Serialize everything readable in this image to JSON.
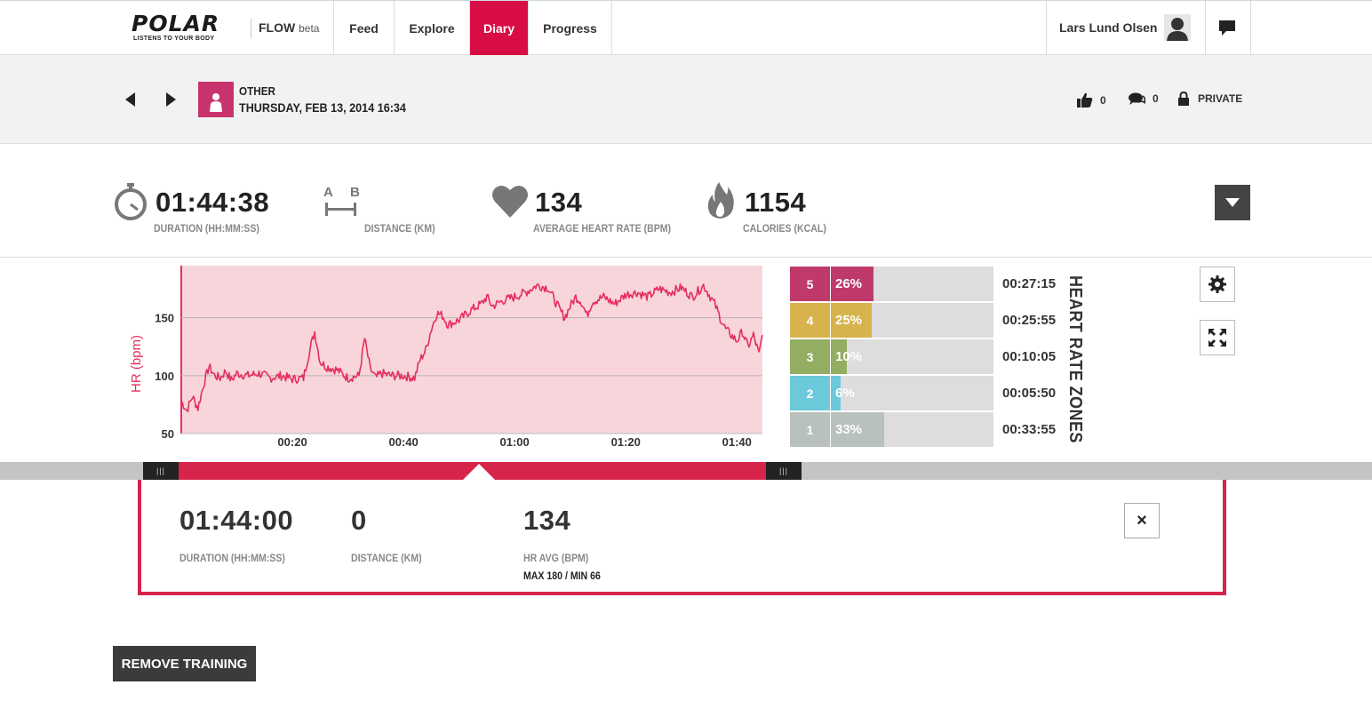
{
  "brand": {
    "name": "POLAR",
    "tagline": "LISTENS TO YOUR BODY",
    "app": "FLOW",
    "app_suffix": "beta"
  },
  "nav": {
    "tabs": [
      {
        "label": "Feed"
      },
      {
        "label": "Explore"
      },
      {
        "label": "Diary",
        "active": true
      },
      {
        "label": "Progress"
      }
    ]
  },
  "user": {
    "name": "Lars Lund Olsen"
  },
  "training": {
    "sport": "OTHER",
    "date": "THURSDAY, FEB 13, 2014 16:34",
    "likes": "0",
    "comments": "0",
    "privacy": "PRIVATE"
  },
  "summary": {
    "duration": {
      "value": "01:44:38",
      "label": "DURATION (HH:MM:SS)"
    },
    "distance": {
      "value": "",
      "label": "DISTANCE (KM)",
      "icon_a": "A",
      "icon_b": "B"
    },
    "heart_rate": {
      "value": "134",
      "label": "AVERAGE HEART RATE (BPM)"
    },
    "calories": {
      "value": "1154",
      "label": "CALORIES (KCAL)"
    }
  },
  "chart_data": {
    "type": "line",
    "ylabel": "HR (bpm)",
    "xlabel": "",
    "ylim": [
      50,
      195
    ],
    "yticks": [
      "150",
      "100",
      "50"
    ],
    "xticks": [
      "00:20",
      "00:40",
      "01:00",
      "01:20",
      "01:40"
    ],
    "xlim_minutes": [
      0,
      104.6
    ],
    "series": [
      {
        "x_minutes": [
          0,
          1,
          2,
          3,
          4,
          5,
          6,
          7,
          8,
          9,
          10,
          12,
          14,
          16,
          18,
          20,
          22,
          23,
          24,
          25,
          26,
          28,
          30,
          32,
          33,
          34,
          35,
          36,
          38,
          40,
          42,
          43,
          44,
          45,
          46,
          47,
          48,
          50,
          52,
          54,
          55,
          56,
          58,
          60,
          62,
          64,
          66,
          68,
          69,
          70,
          71,
          72,
          73,
          74,
          76,
          78,
          80,
          82,
          84,
          86,
          88,
          90,
          92,
          94,
          95,
          96,
          97,
          98,
          99,
          100,
          101,
          102,
          103,
          104,
          104.6
        ],
        "y": [
          78,
          70,
          82,
          72,
          92,
          108,
          100,
          98,
          104,
          96,
          102,
          100,
          102,
          98,
          100,
          97,
          98,
          120,
          138,
          112,
          108,
          105,
          98,
          100,
          132,
          106,
          98,
          102,
          100,
          100,
          98,
          114,
          122,
          140,
          154,
          152,
          144,
          148,
          156,
          162,
          168,
          160,
          165,
          168,
          172,
          178,
          176,
          158,
          150,
          160,
          168,
          164,
          152,
          164,
          168,
          162,
          170,
          172,
          168,
          175,
          172,
          176,
          168,
          178,
          170,
          162,
          150,
          140,
          135,
          130,
          138,
          125,
          135,
          118,
          135
        ]
      }
    ]
  },
  "zones": [
    {
      "zone": "5",
      "percent": "26%",
      "fraction": 0.26,
      "time": "00:27:15",
      "color": "#bf3a6b"
    },
    {
      "zone": "4",
      "percent": "25%",
      "fraction": 0.25,
      "time": "00:25:55",
      "color": "#d6b34c"
    },
    {
      "zone": "3",
      "percent": "10%",
      "fraction": 0.1,
      "time": "00:10:05",
      "color": "#93ad62"
    },
    {
      "zone": "2",
      "percent": "6%",
      "fraction": 0.06,
      "time": "00:05:50",
      "color": "#6cc9da"
    },
    {
      "zone": "1",
      "percent": "33%",
      "fraction": 0.33,
      "time": "00:33:55",
      "color": "#b8c1bc"
    }
  ],
  "zones_title": "HEART RATE ZONES",
  "timeline": {
    "handle_left": "|||",
    "handle_right": "|||",
    "selection_start_fraction": 0.0,
    "selection_end_fraction": 1.0
  },
  "selection": {
    "duration": {
      "value": "01:44:00",
      "label": "DURATION (HH:MM:SS)"
    },
    "distance": {
      "value": "0",
      "label": "DISTANCE (KM)"
    },
    "hr": {
      "value": "134",
      "label": "HR AVG (BPM)",
      "sub": "MAX 180 / MIN 66"
    },
    "close": "×"
  },
  "actions": {
    "remove": "REMOVE TRAINING"
  },
  "colors": {
    "accent": "#d90d45",
    "chart_bg": "#f7d5db",
    "chart_line": "#e62e5c",
    "dark": "#3d3a3e"
  }
}
